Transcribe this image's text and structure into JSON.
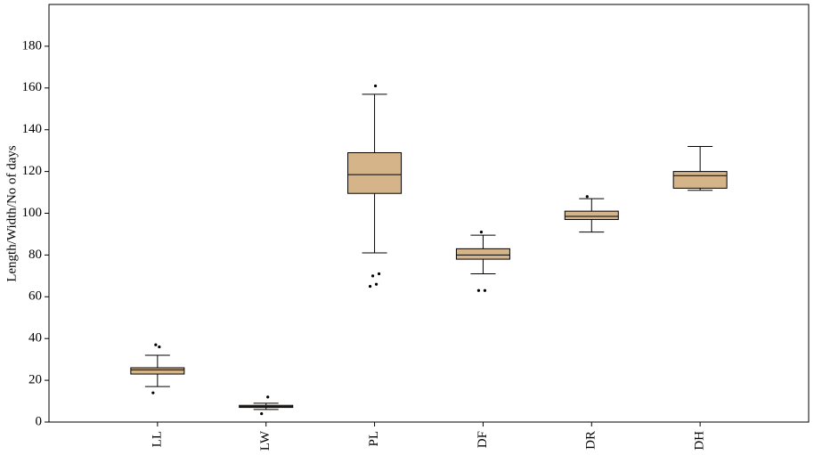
{
  "chart_data": {
    "type": "box",
    "y_label": "Length/Width/No of days",
    "categories": [
      "LL",
      "LW",
      "PL",
      "DF",
      "DR",
      "DH"
    ],
    "boxes": [
      {
        "min": 17,
        "q1": 23,
        "median": 25,
        "q3": 26,
        "max": 32
      },
      {
        "min": 6,
        "q1": 7,
        "median": 7.5,
        "q3": 8,
        "max": 9
      },
      {
        "min": 81,
        "q1": 109.5,
        "median": 118.5,
        "q3": 129,
        "max": 157
      },
      {
        "min": 71,
        "q1": 78,
        "median": 80,
        "q3": 83,
        "max": 89.5
      },
      {
        "min": 91,
        "q1": 97,
        "median": 98.5,
        "q3": 101,
        "max": 107
      },
      {
        "min": 111,
        "q1": 112,
        "median": 118,
        "q3": 120,
        "max": 132
      }
    ],
    "outliers": [
      [
        14,
        36,
        37
      ],
      [
        4,
        12
      ],
      [
        65,
        66,
        70,
        71,
        161
      ],
      [
        63,
        63,
        91
      ],
      [
        108
      ],
      []
    ],
    "color": "#d5b48a",
    "ylim": [
      0,
      200
    ],
    "yticks": [
      0,
      20,
      40,
      60,
      80,
      100,
      120,
      140,
      160,
      180
    ]
  }
}
